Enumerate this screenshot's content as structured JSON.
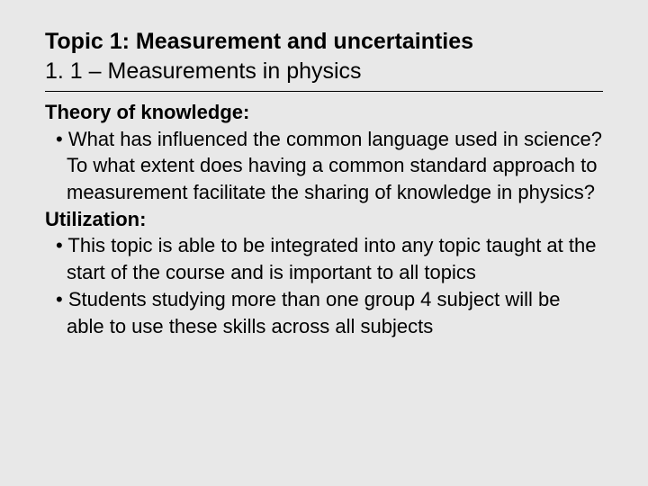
{
  "header": {
    "topic_title": "Topic 1: Measurement and uncertainties",
    "subtitle": "1. 1 – Measurements in physics"
  },
  "sections": {
    "theory_heading": "Theory of knowledge:",
    "theory_bullet1": "• What has influenced the common language used in science? To what extent does having a common standard approach to measurement facilitate the sharing of knowledge in physics?",
    "utilization_heading": "Utilization:",
    "utilization_bullet1": "• This topic is able to be integrated into any topic taught at the start of the course and is important to all topics",
    "utilization_bullet2": "• Students studying more than one group 4 subject will be able to use these skills across all subjects"
  },
  "colors": {
    "background": "#e8e8e8",
    "text": "#000000",
    "divider": "#000000"
  },
  "typography": {
    "title_fontsize": 25,
    "body_fontsize": 22,
    "font_family": "Arial"
  }
}
